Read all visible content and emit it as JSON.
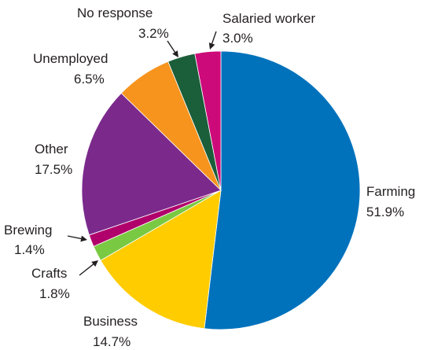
{
  "chart_data": {
    "type": "pie",
    "title": "",
    "slices": [
      {
        "label": "Farming",
        "value": 51.9,
        "value_label": "51.9%",
        "color": "#0072bc"
      },
      {
        "label": "Business",
        "value": 14.7,
        "value_label": "14.7%",
        "color": "#ffcc00"
      },
      {
        "label": "Crafts",
        "value": 1.8,
        "value_label": "1.8%",
        "color": "#7ac943"
      },
      {
        "label": "Brewing",
        "value": 1.4,
        "value_label": "1.4%",
        "color": "#b0006b"
      },
      {
        "label": "Other",
        "value": 17.5,
        "value_label": "17.5%",
        "color": "#7b2a8c"
      },
      {
        "label": "Unemployed",
        "value": 6.5,
        "value_label": "6.5%",
        "color": "#f7941d"
      },
      {
        "label": "No response",
        "value": 3.2,
        "value_label": "3.2%",
        "color": "#1b5e3a"
      },
      {
        "label": "Salaried worker",
        "value": 3.0,
        "value_label": "3.0%",
        "color": "#cc0a7a"
      }
    ],
    "start": "12 o'clock",
    "direction": "clockwise",
    "legend": "none (labels placed beside slices)"
  }
}
